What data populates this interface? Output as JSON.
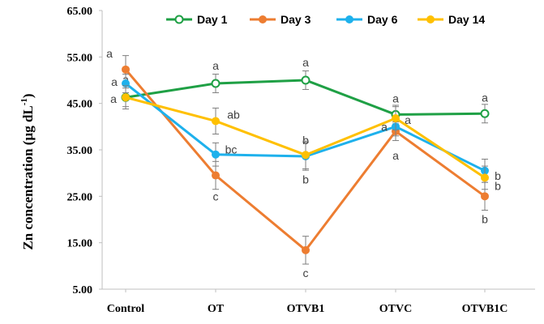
{
  "chart_data": {
    "type": "line",
    "title": "",
    "xlabel": "",
    "ylabel": "Zn concentration  (µg dL",
    "ylabel_superscript": "-1",
    "ylabel_close": ")",
    "ylim": [
      5,
      65
    ],
    "yticks": [
      "65.00",
      "55.00",
      "45.00",
      "35.00",
      "25.00",
      "15.00",
      "5.00"
    ],
    "ytick_values": [
      65,
      55,
      45,
      35,
      25,
      15,
      5
    ],
    "categories": [
      "Control",
      "OT",
      "OTVB1",
      "OTVC",
      "OTVB1C"
    ],
    "legend_position": "top",
    "series": [
      {
        "name": "Day 1",
        "color": "#1FA045",
        "marker": "open-circle",
        "values": [
          46.3,
          49.3,
          50.0,
          42.6,
          42.8
        ],
        "errors": [
          2.0,
          2.0,
          2.0,
          2.0,
          2.0
        ],
        "labels": [
          "a",
          "a",
          "a",
          "a",
          "a"
        ]
      },
      {
        "name": "Day 3",
        "color": "#ED7D31",
        "marker": "filled-circle",
        "values": [
          52.3,
          29.5,
          13.4,
          39.0,
          25.0
        ],
        "errors": [
          3.0,
          3.0,
          3.0,
          2.0,
          3.0
        ],
        "labels": [
          "a",
          "c",
          "c",
          "a",
          "b"
        ]
      },
      {
        "name": "Day 6",
        "color": "#1EB1EC",
        "marker": "filled-circle",
        "values": [
          49.3,
          34.0,
          33.6,
          40.0,
          30.5
        ],
        "errors": [
          2.0,
          2.5,
          3.0,
          2.0,
          2.5
        ],
        "labels": [
          "a",
          "bc",
          "b",
          "a",
          "b"
        ]
      },
      {
        "name": "Day 14",
        "color": "#FFC000",
        "marker": "filled-circle",
        "values": [
          46.3,
          41.2,
          33.9,
          41.8,
          29.0
        ],
        "errors": [
          2.5,
          2.8,
          3.0,
          2.5,
          2.5
        ],
        "labels": [
          "a",
          "ab",
          "b",
          "a",
          "b"
        ]
      }
    ]
  }
}
